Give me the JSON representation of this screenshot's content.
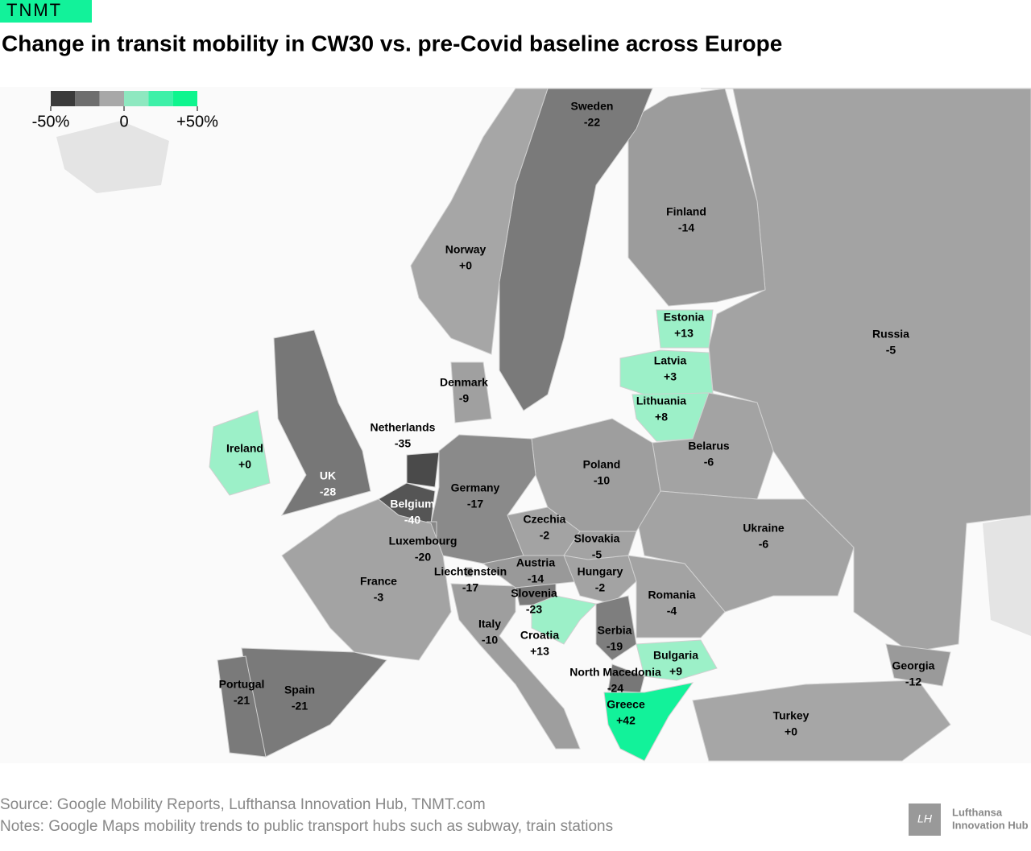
{
  "badge": "TNMT",
  "chart_data": {
    "type": "choropleth",
    "title": "Change in transit mobility in CW30 vs. pre-Covid baseline across Europe",
    "categories": [
      "Russia",
      "Finland",
      "Sweden",
      "Norway",
      "Estonia",
      "Latvia",
      "Lithuania",
      "Belarus",
      "Ukraine",
      "Poland",
      "Denmark",
      "Germany",
      "Netherlands",
      "Belgium",
      "Luxembourg",
      "UK",
      "Ireland",
      "France",
      "Spain",
      "Portugal",
      "Italy",
      "Czechia",
      "Slovakia",
      "Austria",
      "Hungary",
      "Liechtenstein",
      "Slovenia",
      "Croatia",
      "Serbia",
      "Romania",
      "Bulgaria",
      "North Macedonia",
      "Greece",
      "Turkey",
      "Georgia"
    ],
    "values": [
      -5,
      -14,
      -22,
      0,
      13,
      3,
      8,
      -6,
      -6,
      -10,
      -9,
      -17,
      -35,
      -40,
      -20,
      -28,
      0,
      -3,
      -21,
      -21,
      -10,
      -2,
      -5,
      -14,
      -2,
      -17,
      -23,
      13,
      -19,
      -4,
      9,
      -24,
      42,
      0,
      -12
    ],
    "value_labels": [
      "-5",
      "-14",
      "-22",
      "+0",
      "+13",
      "+3",
      "+8",
      "-6",
      "-6",
      "-10",
      "-9",
      "-17",
      "-35",
      "-40",
      "-20",
      "-28",
      "+0",
      "-3",
      "-21",
      "-21",
      "-10",
      "-2",
      "-5",
      "-14",
      "-2",
      "-17",
      "-23",
      "+13",
      "-19",
      "-4",
      "+9",
      "-24",
      "+42",
      "+0",
      "-12"
    ],
    "colors": [
      "#a3a3a3",
      "#9c9c9c",
      "#7a7a7a",
      "#a6a6a6",
      "#9cf0c8",
      "#9cf0c8",
      "#9cf0c8",
      "#a3a3a3",
      "#a3a3a3",
      "#9e9e9e",
      "#a0a0a0",
      "#8a8a8a",
      "#4a4a4a",
      "#555555",
      "#888888",
      "#777777",
      "#9cf0c8",
      "#a3a3a3",
      "#7a7a7a",
      "#7a7a7a",
      "#9e9e9e",
      "#a3a3a3",
      "#a3a3a3",
      "#999999",
      "#a3a3a3",
      "#8a8a8a",
      "#7a7a7a",
      "#9cf0c8",
      "#7e7e7e",
      "#a3a3a3",
      "#9cf0c8",
      "#777777",
      "#12f29a",
      "#a6a6a6",
      "#9a9a9a"
    ],
    "legend": {
      "colors": [
        "#3a3a3a",
        "#6e6e6e",
        "#a8a8a8",
        "#8ee8c0",
        "#3ef0a8",
        "#0ef58e"
      ],
      "lim": [
        -50,
        50
      ],
      "ticks": [
        {
          "value": -50,
          "label": "-50%"
        },
        0,
        {
          "value": 50,
          "label": "+50%"
        }
      ]
    }
  },
  "footer": {
    "source": "Source: Google Mobility Reports, Lufthansa Innovation Hub, TNMT.com",
    "notes": "Notes: Google Maps mobility trends to public transport hubs such as subway, train stations",
    "logo": [
      "Lufthansa",
      "Innovation Hub"
    ]
  }
}
